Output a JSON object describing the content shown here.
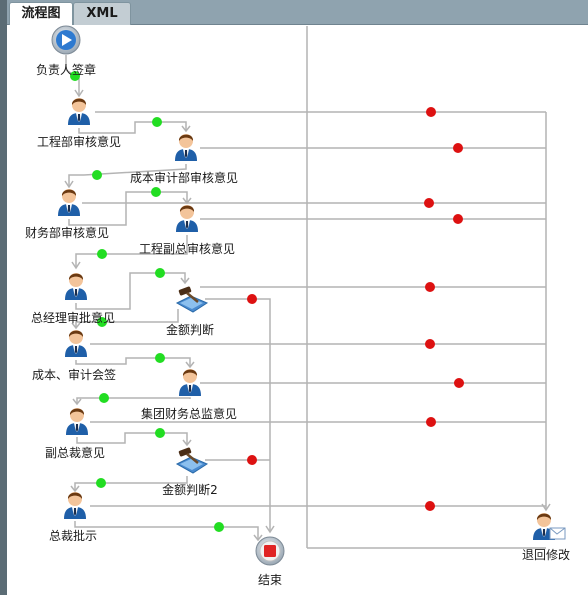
{
  "tabs": [
    {
      "label": "流程图",
      "active": true
    },
    {
      "label": "XML",
      "active": false
    }
  ],
  "nodes": [
    {
      "id": "start",
      "type": "start",
      "label": "负责人签章"
    },
    {
      "id": "n1",
      "type": "user",
      "label": "工程部审核意见"
    },
    {
      "id": "n2",
      "type": "user",
      "label": "成本审计部审核意见"
    },
    {
      "id": "n3",
      "type": "user",
      "label": "财务部审核意见"
    },
    {
      "id": "n4",
      "type": "user",
      "label": "工程副总审核意见"
    },
    {
      "id": "n5",
      "type": "user",
      "label": "总经理审批意见"
    },
    {
      "id": "d1",
      "type": "decision",
      "label": "金额判断"
    },
    {
      "id": "n6",
      "type": "user",
      "label": "成本、审计会签"
    },
    {
      "id": "n7",
      "type": "user",
      "label": "集团财务总监意见"
    },
    {
      "id": "n8",
      "type": "user",
      "label": "副总裁意见"
    },
    {
      "id": "d2",
      "type": "decision",
      "label": "金额判断2"
    },
    {
      "id": "n9",
      "type": "user",
      "label": "总裁批示"
    },
    {
      "id": "end",
      "type": "end",
      "label": "结束"
    },
    {
      "id": "ret",
      "type": "user-mail",
      "label": "退回修改"
    }
  ],
  "colors": {
    "connector": "#b4b4b4",
    "forward_dot": "#22dd22",
    "reject_dot": "#dd1111",
    "user_shirt": "#1f5fa8",
    "user_hair": "#6b3a12"
  }
}
